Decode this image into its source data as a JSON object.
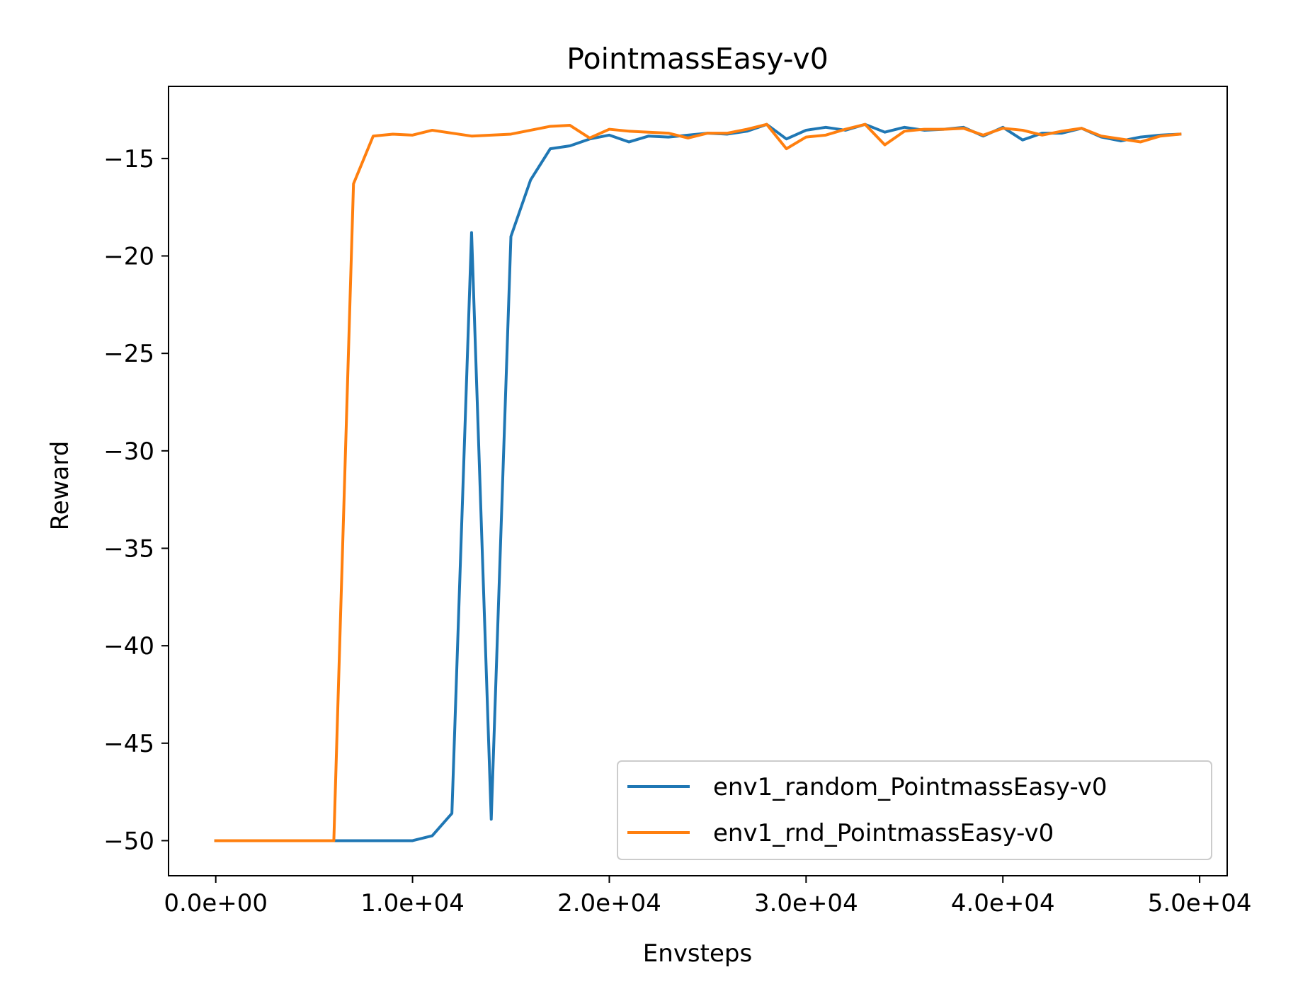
{
  "chart_data": {
    "type": "line",
    "title": "PointmassEasy-v0",
    "xlabel": "Envsteps",
    "ylabel": "Reward",
    "xlim": [
      -2400,
      51400
    ],
    "ylim": [
      -51.8,
      -11.3
    ],
    "xticks": [
      0,
      10000,
      20000,
      30000,
      40000,
      50000
    ],
    "xtick_labels": [
      "0.0e+00",
      "1.0e+04",
      "2.0e+04",
      "3.0e+04",
      "4.0e+04",
      "5.0e+04"
    ],
    "yticks": [
      -50,
      -45,
      -40,
      -35,
      -30,
      -25,
      -20,
      -15
    ],
    "ytick_labels": [
      "−50",
      "−45",
      "−40",
      "−35",
      "−30",
      "−25",
      "−20",
      "−15"
    ],
    "grid": false,
    "legend_position": "lower-right",
    "x": [
      0,
      1000,
      2000,
      3000,
      4000,
      5000,
      6000,
      7000,
      8000,
      9000,
      10000,
      11000,
      12000,
      13000,
      14000,
      15000,
      16000,
      17000,
      18000,
      19000,
      20000,
      21000,
      22000,
      23000,
      24000,
      25000,
      26000,
      27000,
      28000,
      29000,
      30000,
      31000,
      32000,
      33000,
      34000,
      35000,
      36000,
      37000,
      38000,
      39000,
      40000,
      41000,
      42000,
      43000,
      44000,
      45000,
      46000,
      47000,
      48000,
      49000
    ],
    "series": [
      {
        "name": "env1_random_PointmassEasy-v0",
        "color": "#1f77b4",
        "values": [
          -50,
          -50,
          -50,
          -50,
          -50,
          -50,
          -50,
          -50,
          -50,
          -50,
          -50,
          -49.75,
          -48.6,
          -18.8,
          -48.9,
          -19.0,
          -16.1,
          -14.5,
          -14.35,
          -14.0,
          -13.8,
          -14.15,
          -13.85,
          -13.9,
          -13.8,
          -13.7,
          -13.75,
          -13.6,
          -13.25,
          -14.0,
          -13.55,
          -13.4,
          -13.55,
          -13.25,
          -13.65,
          -13.4,
          -13.55,
          -13.5,
          -13.4,
          -13.85,
          -13.4,
          -14.05,
          -13.7,
          -13.7,
          -13.45,
          -13.9,
          -14.1,
          -13.9,
          -13.8,
          -13.75
        ]
      },
      {
        "name": "env1_rnd_PointmassEasy-v0",
        "color": "#ff7f0e",
        "values": [
          -50,
          -50,
          -50,
          -50,
          -50,
          -50,
          -50,
          -16.3,
          -13.85,
          -13.75,
          -13.8,
          -13.55,
          -13.7,
          -13.85,
          -13.8,
          -13.75,
          -13.55,
          -13.35,
          -13.3,
          -13.95,
          -13.5,
          -13.6,
          -13.65,
          -13.7,
          -13.95,
          -13.7,
          -13.7,
          -13.5,
          -13.25,
          -14.5,
          -13.9,
          -13.8,
          -13.5,
          -13.25,
          -14.3,
          -13.6,
          -13.5,
          -13.5,
          -13.45,
          -13.8,
          -13.45,
          -13.55,
          -13.8,
          -13.6,
          -13.45,
          -13.85,
          -14.0,
          -14.15,
          -13.85,
          -13.75
        ]
      }
    ]
  }
}
